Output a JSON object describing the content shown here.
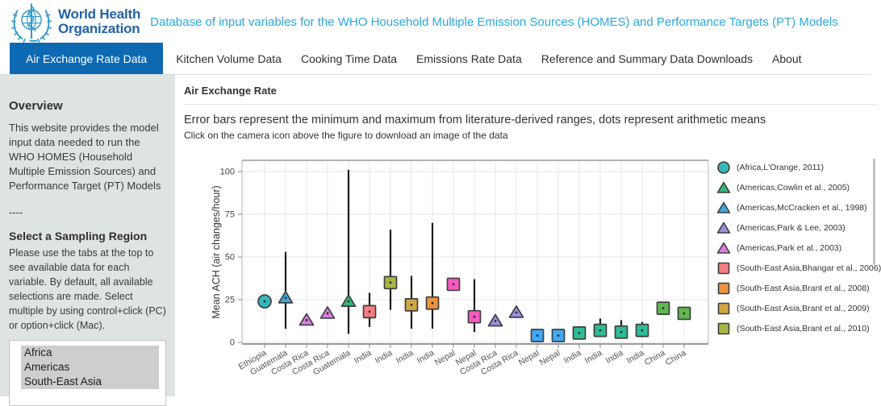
{
  "header": {
    "org_line1": "World Health",
    "org_line2": "Organization",
    "title": "Database of input variables for the WHO Household Multiple Emission Sources (HOMES) and Performance Targets (PT) Models"
  },
  "nav": {
    "items": [
      {
        "label": "Air Exchange Rate Data",
        "active": true
      },
      {
        "label": "Kitchen Volume Data",
        "active": false
      },
      {
        "label": "Cooking Time Data",
        "active": false
      },
      {
        "label": "Emissions Rate Data",
        "active": false
      },
      {
        "label": "Reference and Summary Data Downloads",
        "active": false
      },
      {
        "label": "About",
        "active": false
      }
    ]
  },
  "sidebar": {
    "overview_title": "Overview",
    "overview_text": "This website provides the model input data needed to run the WHO HOMES (Household Multiple Emission Sources) and Performance Target (PT) Models",
    "divider": "----",
    "region_title": "Select a Sampling Region",
    "region_help": "Please use the tabs at the top to see available data for each variable. By default, all available selections are made. Select multiple by using control+click (PC) or option+click (Mac).",
    "region_options": [
      "Africa",
      "Americas",
      "South-East Asia"
    ],
    "region_selected": [
      "Africa",
      "Americas",
      "South-East Asia"
    ]
  },
  "main": {
    "panel_title": "Air Exchange Rate",
    "subtitle": "Error bars represent the minimum and maximum from literature-derived ranges, dots represent arithmetic means",
    "note": "Click on the camera icon above the figure to download an image of the data"
  },
  "chart_data": {
    "type": "scatter",
    "title": "",
    "xlabel": "",
    "ylabel": "Mean ACH (air changes/hour)",
    "ylim": [
      0,
      100
    ],
    "yticks": [
      0,
      25,
      50,
      75,
      100
    ],
    "grid": true,
    "legend_position": "right",
    "legend_scrollable": true,
    "error_bar_meaning": "min/max from literature-derived ranges",
    "legend": [
      {
        "label": "(Africa,L'Orange, 2011)",
        "shape": "circle",
        "color": "#36b8b8"
      },
      {
        "label": "(Americas,Cowlin et al., 2005)",
        "shape": "triangle",
        "color": "#35b47c"
      },
      {
        "label": "(Americas,McCracken et al., 1998)",
        "shape": "triangle",
        "color": "#3aa8de"
      },
      {
        "label": "(Americas,Park & Lee, 2003)",
        "shape": "triangle",
        "color": "#998fe3"
      },
      {
        "label": "(Americas,Park et al., 2003)",
        "shape": "triangle",
        "color": "#d97de0"
      },
      {
        "label": "(South-East Asia,Bhangar et al., 2006)",
        "shape": "square",
        "color": "#f47e81"
      },
      {
        "label": "(South-East Asia,Brant et al., 2008)",
        "shape": "square",
        "color": "#eb9340"
      },
      {
        "label": "(South-East Asia,Brant et al., 2009)",
        "shape": "square",
        "color": "#d0a643"
      },
      {
        "label": "(South-East Asia,Brant et al., 2010)",
        "shape": "square",
        "color": "#a7b544"
      }
    ],
    "points": [
      {
        "x_label": "Ethiopia",
        "shape": "circle",
        "color": "#36b8b8",
        "mean": 24,
        "min": null,
        "max": null
      },
      {
        "x_label": "Guatemala",
        "shape": "triangle",
        "color": "#3aa8de",
        "mean": 26,
        "min": 8,
        "max": 53
      },
      {
        "x_label": "Costa Rica",
        "shape": "triangle",
        "color": "#d97de0",
        "mean": 13,
        "min": null,
        "max": null
      },
      {
        "x_label": "Costa Rica",
        "shape": "triangle",
        "color": "#d97de0",
        "mean": 17,
        "min": null,
        "max": null
      },
      {
        "x_label": "Guatemala",
        "shape": "triangle",
        "color": "#35b47c",
        "mean": 24,
        "min": 5,
        "max": 101
      },
      {
        "x_label": "India",
        "shape": "square",
        "color": "#f47e81",
        "mean": 18,
        "min": 9,
        "max": 29
      },
      {
        "x_label": "India",
        "shape": "square",
        "color": "#a7b544",
        "mean": 35,
        "min": 19,
        "max": 66
      },
      {
        "x_label": "India",
        "shape": "square",
        "color": "#d0a643",
        "mean": 22,
        "min": 8,
        "max": 39
      },
      {
        "x_label": "India",
        "shape": "square",
        "color": "#eb9340",
        "mean": 23,
        "min": 8,
        "max": 70
      },
      {
        "x_label": "Nepal",
        "shape": "square",
        "color": "#f959c3",
        "mean": 34,
        "min": null,
        "max": null
      },
      {
        "x_label": "Nepal",
        "shape": "square",
        "color": "#f959c3",
        "mean": 15,
        "min": 6,
        "max": 37
      },
      {
        "x_label": "Costa Rica",
        "shape": "triangle",
        "color": "#998fe3",
        "mean": 12.5,
        "min": null,
        "max": null
      },
      {
        "x_label": "Costa Rica",
        "shape": "triangle",
        "color": "#998fe3",
        "mean": 17.5,
        "min": null,
        "max": null
      },
      {
        "x_label": "Nepal",
        "shape": "square",
        "color": "#3fa9f5",
        "mean": 4,
        "min": 3,
        "max": 6
      },
      {
        "x_label": "Nepal",
        "shape": "square",
        "color": "#3fa9f5",
        "mean": 4,
        "min": 3,
        "max": 6
      },
      {
        "x_label": "India",
        "shape": "square",
        "color": "#2dbd96",
        "mean": 5.5,
        "min": 3,
        "max": 9
      },
      {
        "x_label": "India",
        "shape": "square",
        "color": "#2dbd96",
        "mean": 7,
        "min": 4,
        "max": 14
      },
      {
        "x_label": "India",
        "shape": "square",
        "color": "#2dbd96",
        "mean": 6,
        "min": 3,
        "max": 13
      },
      {
        "x_label": "India",
        "shape": "square",
        "color": "#2dbd96",
        "mean": 7,
        "min": 3,
        "max": 12
      },
      {
        "x_label": "China",
        "shape": "square",
        "color": "#5fb750",
        "mean": 20,
        "min": null,
        "max": null
      },
      {
        "x_label": "China",
        "shape": "square",
        "color": "#5fb750",
        "mean": 17,
        "min": null,
        "max": null
      }
    ]
  }
}
